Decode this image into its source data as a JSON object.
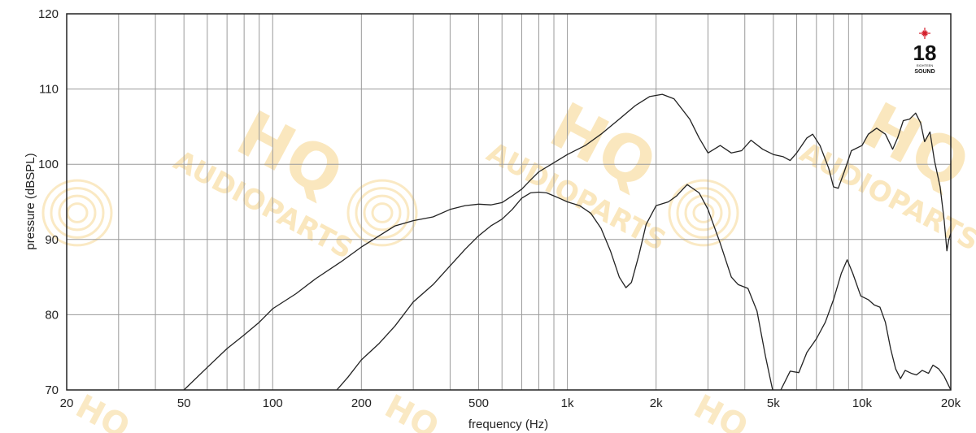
{
  "chart_data": {
    "type": "line",
    "xscale": "log",
    "xlabel": "frequency (Hz)",
    "ylabel": "pressure (dBSPL)",
    "xlim": [
      20,
      20000
    ],
    "ylim": [
      70,
      120
    ],
    "grid": true,
    "x_ticks": [
      {
        "value": 20,
        "label": "20"
      },
      {
        "value": 50,
        "label": "50"
      },
      {
        "value": 100,
        "label": "100"
      },
      {
        "value": 200,
        "label": "200"
      },
      {
        "value": 500,
        "label": "500"
      },
      {
        "value": 1000,
        "label": "1k"
      },
      {
        "value": 2000,
        "label": "2k"
      },
      {
        "value": 5000,
        "label": "5k"
      },
      {
        "value": 10000,
        "label": "10k"
      },
      {
        "value": 20000,
        "label": "20k"
      }
    ],
    "y_ticks": [
      {
        "value": 70,
        "label": "70"
      },
      {
        "value": 80,
        "label": "80"
      },
      {
        "value": 90,
        "label": "90"
      },
      {
        "value": 100,
        "label": "100"
      },
      {
        "value": 110,
        "label": "110"
      },
      {
        "value": 120,
        "label": "120"
      }
    ],
    "series": [
      {
        "color": "#222222",
        "points": [
          [
            50,
            70.0
          ],
          [
            60,
            73.0
          ],
          [
            70,
            75.5
          ],
          [
            80,
            77.3
          ],
          [
            90,
            79.0
          ],
          [
            100,
            80.8
          ],
          [
            120,
            82.8
          ],
          [
            140,
            84.8
          ],
          [
            170,
            87.0
          ],
          [
            200,
            89.0
          ],
          [
            230,
            90.5
          ],
          [
            260,
            91.8
          ],
          [
            300,
            92.5
          ],
          [
            350,
            93.0
          ],
          [
            400,
            94.0
          ],
          [
            450,
            94.5
          ],
          [
            500,
            94.7
          ],
          [
            550,
            94.6
          ],
          [
            600,
            94.9
          ],
          [
            650,
            95.8
          ],
          [
            700,
            96.7
          ],
          [
            750,
            97.9
          ],
          [
            800,
            99.0
          ],
          [
            900,
            100.2
          ],
          [
            1000,
            101.3
          ],
          [
            1150,
            102.5
          ],
          [
            1300,
            104.0
          ],
          [
            1500,
            106.0
          ],
          [
            1700,
            107.8
          ],
          [
            1900,
            109.0
          ],
          [
            2100,
            109.3
          ],
          [
            2300,
            108.7
          ],
          [
            2600,
            106.0
          ],
          [
            2800,
            103.5
          ],
          [
            3000,
            101.5
          ],
          [
            3300,
            102.5
          ],
          [
            3600,
            101.5
          ],
          [
            3900,
            101.8
          ],
          [
            4200,
            103.2
          ],
          [
            4600,
            102.0
          ],
          [
            5000,
            101.3
          ],
          [
            5400,
            101.0
          ],
          [
            5700,
            100.5
          ],
          [
            6000,
            101.5
          ],
          [
            6500,
            103.5
          ],
          [
            6800,
            104.0
          ],
          [
            7200,
            102.5
          ],
          [
            7700,
            99.5
          ],
          [
            8000,
            97.0
          ],
          [
            8300,
            96.8
          ],
          [
            8700,
            99.0
          ],
          [
            9200,
            101.8
          ],
          [
            10000,
            102.5
          ],
          [
            10500,
            104.0
          ],
          [
            11200,
            104.8
          ],
          [
            12000,
            104.0
          ],
          [
            12700,
            102.0
          ],
          [
            13200,
            103.5
          ],
          [
            13800,
            105.8
          ],
          [
            14500,
            106.0
          ],
          [
            15200,
            106.8
          ],
          [
            15800,
            105.5
          ],
          [
            16300,
            103.0
          ],
          [
            17000,
            104.3
          ],
          [
            17600,
            100.5
          ],
          [
            18400,
            97.0
          ],
          [
            19000,
            92.5
          ],
          [
            19400,
            88.5
          ],
          [
            19700,
            90.0
          ],
          [
            20000,
            90.8
          ]
        ]
      },
      {
        "color": "#222222",
        "points": [
          [
            165,
            70.0
          ],
          [
            180,
            71.7
          ],
          [
            200,
            74.0
          ],
          [
            230,
            76.2
          ],
          [
            260,
            78.5
          ],
          [
            300,
            81.7
          ],
          [
            350,
            84.0
          ],
          [
            400,
            86.5
          ],
          [
            450,
            88.7
          ],
          [
            500,
            90.5
          ],
          [
            550,
            91.8
          ],
          [
            600,
            92.7
          ],
          [
            650,
            94.0
          ],
          [
            700,
            95.5
          ],
          [
            750,
            96.2
          ],
          [
            800,
            96.3
          ],
          [
            850,
            96.2
          ],
          [
            900,
            95.8
          ],
          [
            950,
            95.4
          ],
          [
            1000,
            95.0
          ],
          [
            1100,
            94.5
          ],
          [
            1200,
            93.5
          ],
          [
            1300,
            91.5
          ],
          [
            1400,
            88.5
          ],
          [
            1500,
            85.0
          ],
          [
            1580,
            83.6
          ],
          [
            1650,
            84.3
          ],
          [
            1750,
            88.0
          ],
          [
            1850,
            92.0
          ],
          [
            2000,
            94.5
          ],
          [
            2200,
            95.0
          ],
          [
            2350,
            95.8
          ],
          [
            2550,
            97.3
          ],
          [
            2800,
            96.2
          ],
          [
            3000,
            94.0
          ],
          [
            3300,
            89.5
          ],
          [
            3600,
            85.0
          ],
          [
            3800,
            84.0
          ],
          [
            4100,
            83.5
          ],
          [
            4400,
            80.5
          ],
          [
            4700,
            74.5
          ],
          [
            5000,
            69.5
          ],
          [
            5300,
            70.0
          ],
          [
            5700,
            72.5
          ],
          [
            6100,
            72.3
          ],
          [
            6500,
            75.0
          ],
          [
            7000,
            76.8
          ],
          [
            7500,
            79.0
          ],
          [
            8000,
            82.0
          ],
          [
            8500,
            85.5
          ],
          [
            8900,
            87.3
          ],
          [
            9300,
            85.5
          ],
          [
            9900,
            82.5
          ],
          [
            10500,
            82.0
          ],
          [
            11000,
            81.3
          ],
          [
            11500,
            81.0
          ],
          [
            12000,
            79.0
          ],
          [
            12500,
            75.5
          ],
          [
            13000,
            72.8
          ],
          [
            13500,
            71.5
          ],
          [
            14000,
            72.6
          ],
          [
            14700,
            72.2
          ],
          [
            15300,
            72.0
          ],
          [
            16000,
            72.6
          ],
          [
            16800,
            72.2
          ],
          [
            17400,
            73.3
          ],
          [
            18200,
            72.8
          ],
          [
            19000,
            71.8
          ],
          [
            20000,
            70.0
          ]
        ]
      }
    ]
  },
  "watermark": {
    "text_big": "HQ",
    "text_small": "AUDIOPARTS",
    "color": "#f6d58a"
  },
  "logo": {
    "number": "18",
    "subtitle": "EIGHTEEN",
    "word": "SOUND",
    "star_color": "#d41e2c"
  }
}
